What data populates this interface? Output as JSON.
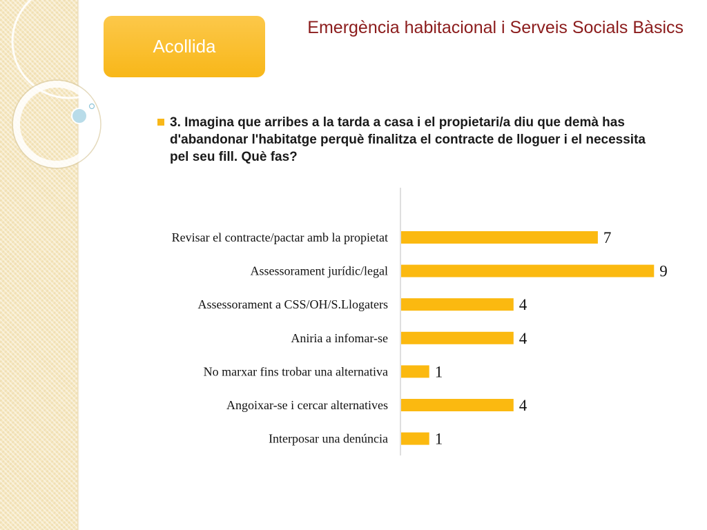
{
  "header": {
    "badge_label": "Acollida",
    "title": "Emergència habitacional i Serveis Socials Bàsics"
  },
  "question": {
    "text": "3. Imagina que arribes a la tarda a casa i el propietari/a diu que demà has d'abandonar l'habitatge perquè finalitza el contracte de lloguer i el necessita pel seu fill. Què fas?"
  },
  "colors": {
    "accent": "#f8b719",
    "title": "#8b1c1c",
    "bar": "#fbb910"
  },
  "chart_data": {
    "type": "bar",
    "orientation": "horizontal",
    "categories": [
      "Revisar el contracte/pactar amb la propietat",
      "Assessorament  jurídic/legal",
      "Assessorament  a CSS/OH/S.Llogaters",
      "Aniria a infomar-se",
      "No marxar fins trobar una alternativa",
      "Angoixar-se i cercar alternatives",
      "Interposar una denúncia"
    ],
    "values": [
      7,
      9,
      4,
      4,
      1,
      4,
      1
    ],
    "xlim": [
      0,
      9
    ],
    "grid": false,
    "legend": "none"
  }
}
